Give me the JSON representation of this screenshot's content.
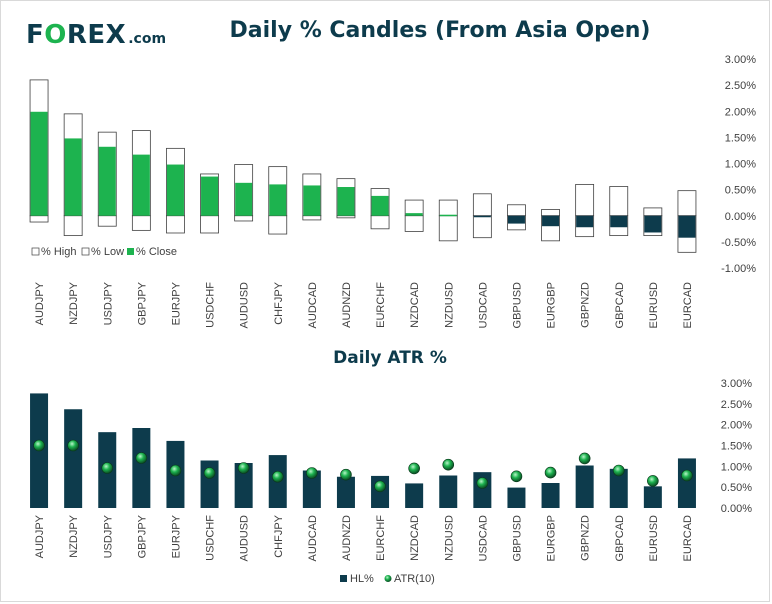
{
  "logo": {
    "text_fo": "F",
    "text_o": "O",
    "text_rex": "REX",
    "text_com": ".com"
  },
  "colors": {
    "green": "#1db34f",
    "navy": "#0d3b4c",
    "bar_outline": "#404040"
  },
  "chart_data": [
    {
      "type": "candlestick",
      "title": "Daily % Candles (From Asia Open)",
      "categories": [
        "AUDJPY",
        "NZDJPY",
        "USDJPY",
        "GBPJPY",
        "EURJPY",
        "USDCHF",
        "AUDUSD",
        "CHFJPY",
        "AUDCAD",
        "AUDNZD",
        "EURCHF",
        "NZDCAD",
        "NZDUSD",
        "USDCAD",
        "GBPUSD",
        "EURGBP",
        "GBPNZD",
        "GBPCAD",
        "EURUSD",
        "EURCAD"
      ],
      "series": [
        {
          "name": "% High",
          "values": [
            2.6,
            1.95,
            1.6,
            1.63,
            1.29,
            0.8,
            0.98,
            0.94,
            0.8,
            0.71,
            0.52,
            0.3,
            0.3,
            0.42,
            0.21,
            0.12,
            0.6,
            0.56,
            0.15,
            0.48
          ]
        },
        {
          "name": "% Low",
          "values": [
            -0.12,
            -0.38,
            -0.2,
            -0.28,
            -0.33,
            -0.33,
            -0.1,
            -0.35,
            -0.08,
            -0.04,
            -0.25,
            -0.3,
            -0.48,
            -0.42,
            -0.27,
            -0.48,
            -0.4,
            -0.38,
            -0.38,
            -0.7
          ]
        },
        {
          "name": "% Close",
          "values": [
            1.99,
            1.48,
            1.32,
            1.17,
            0.98,
            0.75,
            0.63,
            0.6,
            0.58,
            0.55,
            0.38,
            0.05,
            0.02,
            -0.02,
            -0.15,
            -0.2,
            -0.22,
            -0.22,
            -0.32,
            -0.42
          ]
        }
      ],
      "ylim": [
        -1.0,
        3.0
      ],
      "yticks": [
        "3.00%",
        "2.50%",
        "2.00%",
        "1.50%",
        "1.00%",
        "0.50%",
        "0.00%",
        "-0.50%",
        "-1.00%"
      ],
      "legend": [
        "% High",
        "% Low",
        "% Close"
      ],
      "legend_position": "bottom-left"
    },
    {
      "type": "bar",
      "title": "Daily ATR %",
      "categories": [
        "AUDJPY",
        "NZDJPY",
        "USDJPY",
        "GBPJPY",
        "EURJPY",
        "USDCHF",
        "AUDUSD",
        "CHFJPY",
        "AUDCAD",
        "AUDNZD",
        "EURCHF",
        "NZDCAD",
        "NZDUSD",
        "USDCAD",
        "GBPUSD",
        "EURGBP",
        "GBPNZD",
        "GBPCAD",
        "EURUSD",
        "EURCAD"
      ],
      "series": [
        {
          "name": "HL%",
          "values": [
            2.75,
            2.37,
            1.82,
            1.92,
            1.61,
            1.14,
            1.08,
            1.27,
            0.9,
            0.75,
            0.77,
            0.59,
            0.78,
            0.86,
            0.49,
            0.6,
            1.02,
            0.94,
            0.52,
            1.19
          ]
        },
        {
          "name": "ATR(10)",
          "values": [
            1.5,
            1.5,
            0.96,
            1.2,
            0.9,
            0.84,
            0.96,
            0.75,
            0.84,
            0.8,
            0.52,
            0.95,
            1.04,
            0.6,
            0.76,
            0.85,
            1.19,
            0.9,
            0.65,
            0.78
          ]
        }
      ],
      "ylim": [
        0.0,
        3.0
      ],
      "yticks": [
        "3.00%",
        "2.50%",
        "2.00%",
        "1.50%",
        "1.00%",
        "0.50%",
        "0.00%"
      ],
      "legend": [
        "HL%",
        "ATR(10)"
      ],
      "legend_position": "bottom"
    }
  ]
}
